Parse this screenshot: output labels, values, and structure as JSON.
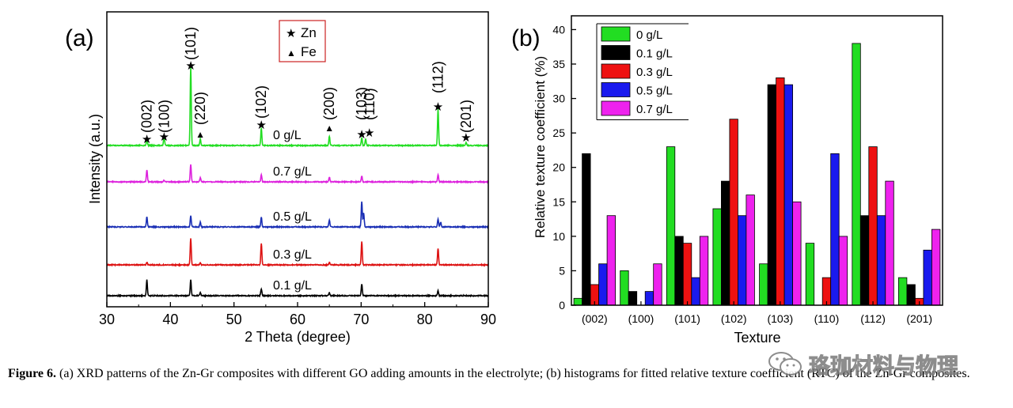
{
  "chart_data": [
    {
      "type": "line",
      "panel_label": "(a)",
      "xlabel": "2 Theta (degree)",
      "ylabel": "Intensity (a.u.)",
      "xlim": [
        30,
        90
      ],
      "x_ticks": [
        "30",
        "40",
        "50",
        "60",
        "70",
        "80",
        "90"
      ],
      "legend": [
        {
          "label": "Zn",
          "symbol": "★",
          "color": "#1a2fb5"
        },
        {
          "label": "Fe",
          "symbol": "▲",
          "color": "#000000"
        }
      ],
      "series": [
        {
          "name": "0 g/L",
          "label": "0 g/L",
          "color": "#22dd22",
          "peaks": [
            [
              36.3,
              0.08
            ],
            [
              39.0,
              0.12
            ],
            [
              43.2,
              1.0
            ],
            [
              44.7,
              0.08
            ],
            [
              54.3,
              0.22
            ],
            [
              65.0,
              0.12
            ],
            [
              70.1,
              0.1
            ],
            [
              70.7,
              0.08
            ],
            [
              82.1,
              0.46
            ],
            [
              86.5,
              0.04
            ]
          ]
        },
        {
          "name": "0.7 g/L",
          "label": "0.7 g/L",
          "color": "#dd22dd",
          "peaks": [
            [
              36.3,
              0.3
            ],
            [
              39.0,
              0.05
            ],
            [
              43.2,
              0.45
            ],
            [
              44.7,
              0.1
            ],
            [
              54.3,
              0.18
            ],
            [
              65.0,
              0.12
            ],
            [
              70.1,
              0.15
            ],
            [
              82.1,
              0.18
            ]
          ]
        },
        {
          "name": "0.5 g/L",
          "label": "0.5 g/L",
          "color": "#1a2fb5",
          "peaks": [
            [
              36.3,
              0.26
            ],
            [
              43.2,
              0.28
            ],
            [
              44.7,
              0.12
            ],
            [
              54.3,
              0.25
            ],
            [
              65.0,
              0.18
            ],
            [
              70.1,
              0.65
            ],
            [
              70.4,
              0.35
            ],
            [
              82.1,
              0.2
            ],
            [
              82.5,
              0.12
            ]
          ]
        },
        {
          "name": "0.3 g/L",
          "label": "0.3 g/L",
          "color": "#dd1111",
          "peaks": [
            [
              36.3,
              0.07
            ],
            [
              43.2,
              0.68
            ],
            [
              44.7,
              0.05
            ],
            [
              54.3,
              0.55
            ],
            [
              65.0,
              0.07
            ],
            [
              70.1,
              0.6
            ],
            [
              82.1,
              0.42
            ]
          ]
        },
        {
          "name": "0.1 g/L",
          "label": "0.1 g/L",
          "color": "#000000",
          "peaks": [
            [
              36.3,
              0.4
            ],
            [
              43.2,
              0.4
            ],
            [
              44.7,
              0.08
            ],
            [
              54.3,
              0.18
            ],
            [
              65.0,
              0.08
            ],
            [
              70.1,
              0.3
            ],
            [
              82.1,
              0.12
            ]
          ]
        }
      ],
      "annotations": [
        {
          "text": "(002)",
          "x": 36.3,
          "marker": "zn"
        },
        {
          "text": "(100)",
          "x": 39.0,
          "marker": "zn"
        },
        {
          "text": "(101)",
          "x": 43.2,
          "marker": "zn"
        },
        {
          "text": "(220)",
          "x": 44.7,
          "marker": "fe"
        },
        {
          "text": "(102)",
          "x": 54.3,
          "marker": "zn"
        },
        {
          "text": "(200)",
          "x": 65.0,
          "marker": "fe"
        },
        {
          "text": "(103)",
          "x": 70.1,
          "marker": "zn"
        },
        {
          "text": "(110)",
          "x": 71.3,
          "marker": "zn"
        },
        {
          "text": "(112)",
          "x": 82.1,
          "marker": "zn"
        },
        {
          "text": "(201)",
          "x": 86.5,
          "marker": "zn"
        }
      ]
    },
    {
      "type": "bar",
      "panel_label": "(b)",
      "xlabel": "Texture",
      "ylabel": "Relative texture coefficient (%)",
      "ylim": [
        0,
        42
      ],
      "y_ticks": [
        "0",
        "5",
        "10",
        "15",
        "20",
        "25",
        "30",
        "35",
        "40"
      ],
      "categories": [
        "(002)",
        "(100)",
        "(101)",
        "(102)",
        "(103)",
        "(110)",
        "(112)",
        "(201)"
      ],
      "series": [
        {
          "name": "0 g/L",
          "color": "#22dd22",
          "values": [
            1,
            5,
            23,
            14,
            6,
            9,
            38,
            4
          ]
        },
        {
          "name": "0.1 g/L",
          "color": "#000000",
          "values": [
            22,
            2,
            10,
            18,
            32,
            0,
            13,
            3
          ]
        },
        {
          "name": "0.3 g/L",
          "color": "#ee1111",
          "values": [
            3,
            0,
            9,
            27,
            33,
            4,
            23,
            1
          ]
        },
        {
          "name": "0.5 g/L",
          "color": "#1a1aee",
          "values": [
            6,
            2,
            4,
            13,
            32,
            22,
            13,
            8
          ]
        },
        {
          "name": "0.7 g/L",
          "color": "#ee22ee",
          "values": [
            13,
            6,
            10,
            16,
            15,
            10,
            18,
            11
          ]
        }
      ]
    }
  ],
  "caption": {
    "label": "Figure 6.",
    "text": "(a) XRD patterns of the Zn-Gr composites with different GO adding amounts in the electrolyte; (b) histograms for fitted relative texture coefficient (RTC) of the Zn-Gr composites."
  },
  "watermark": {
    "text": "珞珈材料与物理"
  }
}
